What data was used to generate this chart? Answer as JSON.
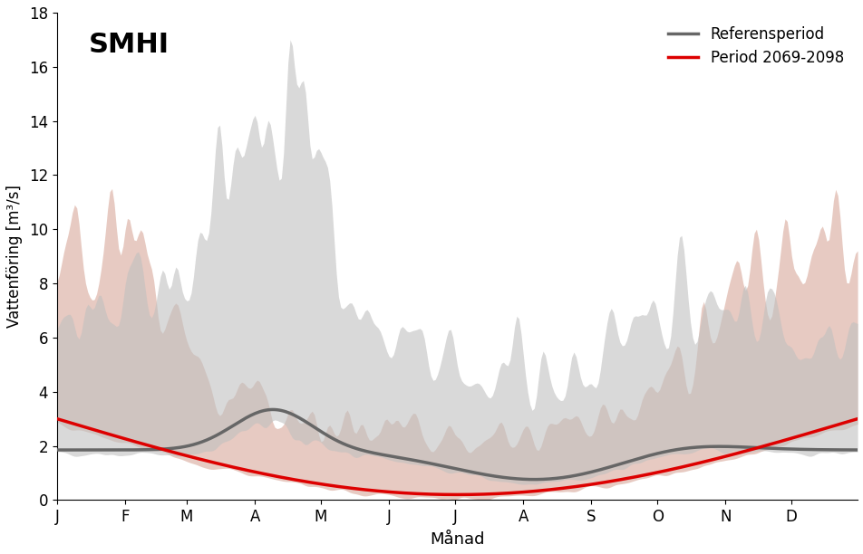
{
  "xlabel": "Månad",
  "ylabel": "Vattenföring [m³/s]",
  "ylim": [
    0,
    18
  ],
  "yticks": [
    0,
    2,
    4,
    6,
    8,
    10,
    12,
    14,
    16,
    18
  ],
  "month_labels": [
    "J",
    "F",
    "M",
    "A",
    "M",
    "J",
    "J",
    "A",
    "S",
    "O",
    "N",
    "D"
  ],
  "legend_labels": [
    "Referensperiod",
    "Period 2069-2098"
  ],
  "ref_line_color": "#666666",
  "fut_line_color": "#dd0000",
  "ref_band_color": "#c0c0c0",
  "fut_band_color": "#d4a090",
  "background_color": "#ffffff",
  "smhi_text": "SMHI",
  "n_days": 365
}
